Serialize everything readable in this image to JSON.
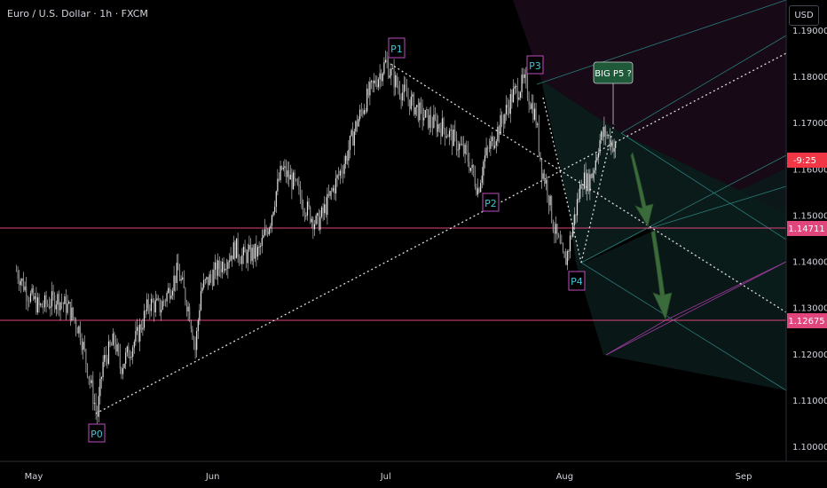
{
  "header": {
    "title": "Euro / U.S. Dollar · 1h · FXCM",
    "currency_button": "USD"
  },
  "colors": {
    "background": "#000000",
    "candle": "#d6d6d6",
    "axis_text": "#d1d4dc",
    "level_line": "#e0457b",
    "wave_label": "#3ec6d8",
    "arrow": "#3a6b3a",
    "callout_bg": "#1e5a3a"
  },
  "chart_data": {
    "type": "candlestick",
    "symbol": "EURUSD",
    "timeframe": "1h",
    "y_axis": {
      "range": [
        1.095,
        1.195
      ],
      "ticks": [
        "1.19000",
        "1.18000",
        "1.17000",
        "1.16000",
        "1.15000",
        "1.14000",
        "1.13000",
        "1.12000",
        "1.11000",
        "1.10000"
      ]
    },
    "x_axis": {
      "ticks": [
        "May",
        "Jun",
        "Jul",
        "Aug",
        "Sep"
      ]
    },
    "horizontal_levels": [
      {
        "price": 1.14711,
        "label": "1.14711"
      },
      {
        "price": 1.12675,
        "label": "1.12675"
      }
    ],
    "price_tag": {
      "label": "-9:25",
      "price": 1.163
    },
    "pivots": [
      {
        "label": "P0",
        "date": "May 12",
        "price": 1.1065
      },
      {
        "label": "P1",
        "date": "Jul 1",
        "price": 1.183
      },
      {
        "label": "P2",
        "date": "Jul 17",
        "price": 1.1555
      },
      {
        "label": "P3",
        "date": "Jul 25",
        "price": 1.1788
      },
      {
        "label": "P4",
        "date": "Aug 1",
        "price": 1.1393
      }
    ],
    "annotation": {
      "text": "BIG P5 ?"
    },
    "price_path": [
      [
        "2025-04-28",
        1.138
      ],
      [
        "2025-04-30",
        1.133
      ],
      [
        "2025-05-02",
        1.13
      ],
      [
        "2025-05-05",
        1.132
      ],
      [
        "2025-05-07",
        1.13
      ],
      [
        "2025-05-09",
        1.125
      ],
      [
        "2025-05-12",
        1.1065
      ],
      [
        "2025-05-13",
        1.118
      ],
      [
        "2025-05-15",
        1.123
      ],
      [
        "2025-05-16",
        1.117
      ],
      [
        "2025-05-19",
        1.124
      ],
      [
        "2025-05-21",
        1.131
      ],
      [
        "2025-05-23",
        1.13
      ],
      [
        "2025-05-26",
        1.138
      ],
      [
        "2025-05-28",
        1.129
      ],
      [
        "2025-05-29",
        1.121
      ],
      [
        "2025-05-30",
        1.134
      ],
      [
        "2025-06-03",
        1.14
      ],
      [
        "2025-06-05",
        1.143
      ],
      [
        "2025-06-06",
        1.141
      ],
      [
        "2025-06-09",
        1.142
      ],
      [
        "2025-06-11",
        1.149
      ],
      [
        "2025-06-12",
        1.155
      ],
      [
        "2025-06-13",
        1.16
      ],
      [
        "2025-06-15",
        1.157
      ],
      [
        "2025-06-17",
        1.152
      ],
      [
        "2025-06-19",
        1.148
      ],
      [
        "2025-06-20",
        1.15
      ],
      [
        "2025-06-22",
        1.156
      ],
      [
        "2025-06-24",
        1.162
      ],
      [
        "2025-06-26",
        1.17
      ],
      [
        "2025-06-28",
        1.176
      ],
      [
        "2025-07-01",
        1.183
      ],
      [
        "2025-07-03",
        1.178
      ],
      [
        "2025-07-05",
        1.175
      ],
      [
        "2025-07-07",
        1.172
      ],
      [
        "2025-07-09",
        1.17
      ],
      [
        "2025-07-11",
        1.169
      ],
      [
        "2025-07-13",
        1.166
      ],
      [
        "2025-07-15",
        1.163
      ],
      [
        "2025-07-17",
        1.1555
      ],
      [
        "2025-07-18",
        1.162
      ],
      [
        "2025-07-21",
        1.17
      ],
      [
        "2025-07-23",
        1.176
      ],
      [
        "2025-07-25",
        1.1788
      ],
      [
        "2025-07-27",
        1.171
      ],
      [
        "2025-07-28",
        1.16
      ],
      [
        "2025-07-29",
        1.156
      ],
      [
        "2025-07-30",
        1.148
      ],
      [
        "2025-08-01",
        1.1393
      ],
      [
        "2025-08-02",
        1.145
      ],
      [
        "2025-08-04",
        1.158
      ],
      [
        "2025-08-05",
        1.157
      ],
      [
        "2025-08-06",
        1.16
      ],
      [
        "2025-08-07",
        1.166
      ],
      [
        "2025-08-08",
        1.168
      ],
      [
        "2025-08-10",
        1.164
      ]
    ],
    "projection_arrows": [
      {
        "from": 1.165,
        "to": 1.147
      },
      {
        "from": 1.147,
        "to": 1.1268
      }
    ]
  }
}
